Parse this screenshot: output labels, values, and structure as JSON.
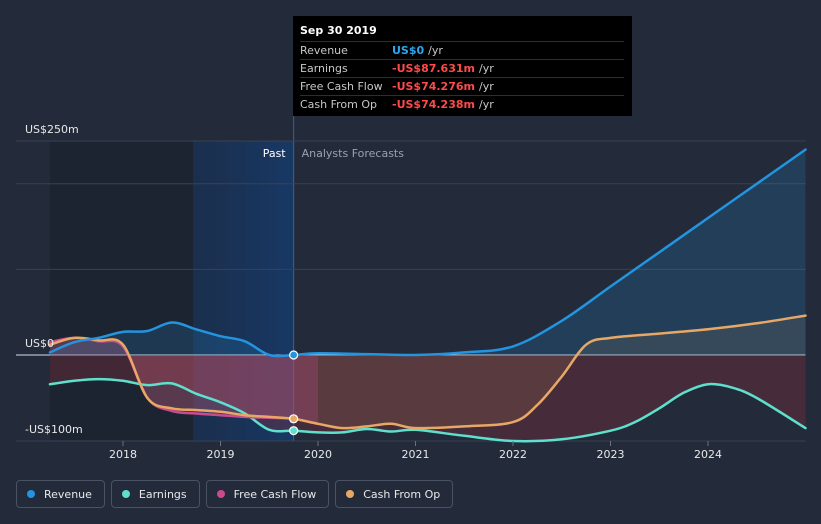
{
  "tooltip": {
    "date": "Sep 30 2019",
    "rows": [
      {
        "label": "Revenue",
        "value": "US$0",
        "unit": "/yr",
        "tone": "pos"
      },
      {
        "label": "Earnings",
        "value": "-US$87.631m",
        "unit": "/yr",
        "tone": "neg"
      },
      {
        "label": "Free Cash Flow",
        "value": "-US$74.276m",
        "unit": "/yr",
        "tone": "neg"
      },
      {
        "label": "Cash From Op",
        "value": "-US$74.238m",
        "unit": "/yr",
        "tone": "neg"
      }
    ]
  },
  "legend": [
    {
      "label": "Revenue",
      "color": "#2394df"
    },
    {
      "label": "Earnings",
      "color": "#5ee0cc"
    },
    {
      "label": "Free Cash Flow",
      "color": "#c94b8e"
    },
    {
      "label": "Cash From Op",
      "color": "#e8a865"
    }
  ],
  "chart_data": {
    "type": "line",
    "y_tick_labels": [
      "US$250m",
      "US$0",
      "-US$100m"
    ],
    "ylim": [
      -100,
      250
    ],
    "xlim": [
      2017.25,
      2025.0
    ],
    "x_tick_labels": [
      "2018",
      "2019",
      "2020",
      "2021",
      "2022",
      "2023",
      "2024"
    ],
    "x_ticks": [
      2018,
      2019,
      2020,
      2021,
      2022,
      2023,
      2024
    ],
    "divider_x": 2019.75,
    "past_label": "Past",
    "forecast_label": "Analysts Forecasts",
    "series": [
      {
        "name": "Revenue",
        "color": "#2394df",
        "x": [
          2017.25,
          2017.5,
          2017.75,
          2018.0,
          2018.25,
          2018.5,
          2018.75,
          2019.0,
          2019.25,
          2019.5,
          2019.75,
          2020.0,
          2020.5,
          2021.0,
          2021.5,
          2022.0,
          2022.5,
          2023.0,
          2023.5,
          2024.0,
          2024.5,
          2025.0
        ],
        "y": [
          3,
          15,
          20,
          27,
          28,
          38,
          30,
          22,
          16,
          0,
          0,
          2,
          1,
          0,
          3,
          10,
          40,
          80,
          120,
          160,
          200,
          240
        ]
      },
      {
        "name": "Earnings",
        "color": "#5ee0cc",
        "x": [
          2017.25,
          2017.5,
          2017.75,
          2018.0,
          2018.25,
          2018.5,
          2018.75,
          2019.0,
          2019.25,
          2019.5,
          2019.75,
          2020.0,
          2020.25,
          2020.5,
          2020.75,
          2021.0,
          2021.5,
          2022.0,
          2022.5,
          2023.0,
          2023.25,
          2023.5,
          2023.75,
          2024.0,
          2024.25,
          2024.5,
          2025.0
        ],
        "y": [
          -34,
          -30,
          -28,
          -30,
          -35,
          -33,
          -45,
          -55,
          -68,
          -87,
          -88,
          -90,
          -90,
          -86,
          -89,
          -87,
          -94,
          -100,
          -98,
          -88,
          -78,
          -62,
          -44,
          -34,
          -38,
          -50,
          -85
        ]
      },
      {
        "name": "Free Cash Flow",
        "color": "#c94b8e",
        "x": [
          2017.25,
          2017.5,
          2017.75,
          2018.0,
          2018.25,
          2018.5,
          2018.75,
          2019.0,
          2019.25,
          2019.5,
          2019.75,
          2020.0
        ],
        "y": [
          15,
          20,
          16,
          10,
          -50,
          -65,
          -68,
          -70,
          -72,
          -73,
          -74.3,
          -80
        ]
      },
      {
        "name": "Cash From Op",
        "color": "#e8a865",
        "x": [
          2017.25,
          2017.5,
          2017.75,
          2018.0,
          2018.25,
          2018.5,
          2018.75,
          2019.0,
          2019.25,
          2019.5,
          2019.75,
          2020.0,
          2020.25,
          2020.5,
          2020.75,
          2021.0,
          2021.5,
          2022.0,
          2022.25,
          2022.5,
          2022.75,
          2023.0,
          2023.5,
          2024.0,
          2024.5,
          2025.0
        ],
        "y": [
          12,
          20,
          17,
          12,
          -50,
          -62,
          -64,
          -66,
          -70,
          -72,
          -74.2,
          -80,
          -85,
          -83,
          -80,
          -85,
          -83,
          -78,
          -58,
          -25,
          12,
          20,
          25,
          30,
          37,
          46
        ]
      }
    ]
  }
}
